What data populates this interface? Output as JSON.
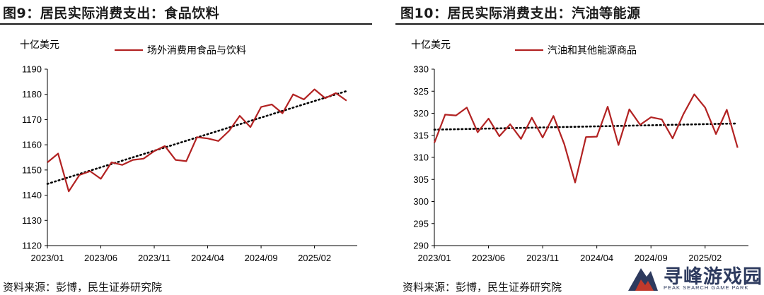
{
  "panels": [
    {
      "title": "图9：居民实际消费支出：食品饮料",
      "source": "资料来源：彭博，民生证券研究院",
      "chart_data": {
        "type": "line",
        "unit_label": "十亿美元",
        "ylim": [
          1120,
          1190
        ],
        "yticks": [
          1120,
          1130,
          1140,
          1150,
          1160,
          1170,
          1180,
          1190
        ],
        "xtick_labels": [
          "2023/01",
          "2023/06",
          "2023/11",
          "2024/04",
          "2024/09",
          "2025/02"
        ],
        "xtick_positions": [
          0,
          5,
          10,
          15,
          20,
          25
        ],
        "xlim": [
          0,
          29
        ],
        "trendline": true,
        "legend_position": "top-center",
        "series": [
          {
            "name": "场外消费用食品与饮料",
            "color": "#b22222",
            "x": [
              0,
              1,
              2,
              3,
              4,
              5,
              6,
              7,
              8,
              9,
              10,
              11,
              12,
              13,
              14,
              15,
              16,
              17,
              18,
              19,
              20,
              21,
              22,
              23,
              24,
              25,
              26,
              27,
              28
            ],
            "values": [
              1153,
              1156.5,
              1141.5,
              1148,
              1149.5,
              1146.5,
              1153,
              1152,
              1154,
              1154.5,
              1157.5,
              1159.5,
              1154,
              1153.5,
              1163,
              1162.5,
              1161.5,
              1165.5,
              1171.5,
              1167,
              1175,
              1176,
              1172.5,
              1180,
              1178,
              1182,
              1178.5,
              1180.5,
              1177.5
            ]
          }
        ]
      }
    },
    {
      "title": "图10：居民实际消费支出：汽油等能源",
      "source": "资料来源：彭博，民生证券研究院",
      "chart_data": {
        "type": "line",
        "unit_label": "十亿美元",
        "ylim": [
          290,
          330
        ],
        "yticks": [
          290,
          295,
          300,
          305,
          310,
          315,
          320,
          325,
          330
        ],
        "xtick_labels": [
          "2023/01",
          "2023/06",
          "2023/11",
          "2024/04",
          "2024/09",
          "2025/02"
        ],
        "xtick_positions": [
          0,
          5,
          10,
          15,
          20,
          25
        ],
        "xlim": [
          0,
          29
        ],
        "trendline": true,
        "legend_position": "top-center",
        "series": [
          {
            "name": "汽油和其他能源商品",
            "color": "#b22222",
            "x": [
              0,
              1,
              2,
              3,
              4,
              5,
              6,
              7,
              8,
              9,
              10,
              11,
              12,
              13,
              14,
              15,
              16,
              17,
              18,
              19,
              20,
              21,
              22,
              23,
              24,
              25,
              26,
              27,
              28
            ],
            "values": [
              313.3,
              319.7,
              319.5,
              321.3,
              315.7,
              318.8,
              314.8,
              317.5,
              314.2,
              319,
              314.5,
              319.4,
              313,
              304.3,
              314.6,
              314.7,
              321.5,
              312.8,
              320.9,
              317.4,
              319.1,
              318.6,
              314.3,
              319.8,
              324.3,
              321.3,
              315.3,
              320.8,
              312.2
            ]
          }
        ]
      }
    }
  ],
  "watermark": {
    "name": "寻峰游戏园",
    "subtitle": "PEAK SEARCH GAME PARK"
  }
}
